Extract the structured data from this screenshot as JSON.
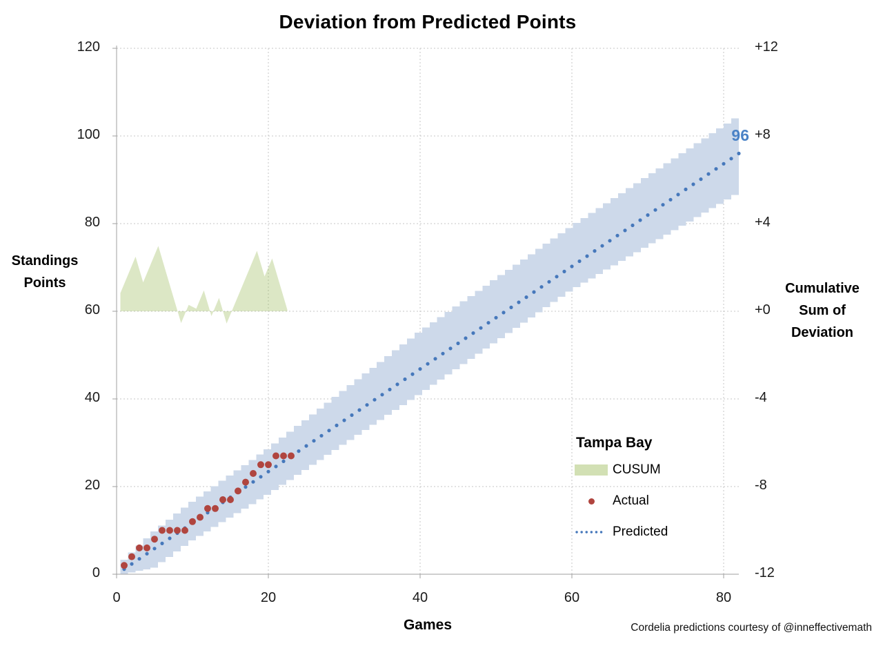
{
  "title": "Deviation from Predicted Points",
  "footnote": "Cordelia predictions courtesy of @inneffectivemath",
  "annotation": {
    "text": "96",
    "color": "#4a82c6"
  },
  "axes": {
    "x": {
      "label": "Games",
      "ticks": [
        0,
        20,
        40,
        60,
        80
      ],
      "range": [
        0,
        82
      ]
    },
    "y_left": {
      "label": "Standings Points",
      "ticks": [
        0,
        20,
        40,
        60,
        80,
        100,
        120
      ],
      "range": [
        0,
        120
      ]
    },
    "y_right": {
      "label": "Cumulative Sum of Deviation",
      "ticks": [
        "+12",
        "+8",
        "+4",
        "+0",
        "-4",
        "-8",
        "-12"
      ],
      "tick_values": [
        12,
        8,
        4,
        0,
        -4,
        -8,
        -12
      ],
      "range": [
        -12,
        12
      ]
    }
  },
  "legend": {
    "title": "Tampa Bay",
    "items": [
      {
        "label": "CUSUM",
        "type": "area",
        "color": "#9BBB59",
        "opacity": 0.35
      },
      {
        "label": "Actual",
        "type": "dot",
        "color": "#b0453f"
      },
      {
        "label": "Predicted",
        "type": "dotted-line",
        "color": "#4678bb"
      }
    ]
  },
  "colors": {
    "band_fill": "#cdd9ea",
    "cusum_fill": "#9BBB59",
    "cusum_opacity": 0.35,
    "actual": "#b0453f",
    "predicted": "#4678bb",
    "annotation_blue": "#4a82c6",
    "gridline": "#c4c4c4",
    "axis_line": "#9f9f9f"
  },
  "chart_data": {
    "type": "combo",
    "title": "Deviation from Predicted Points",
    "xlabel": "Games",
    "ylabel_left": "Standings Points",
    "ylabel_right": "Cumulative Sum of Deviation",
    "xlim": [
      0,
      83
    ],
    "ylim_left": [
      0,
      120
    ],
    "ylim_right": [
      -12,
      12
    ],
    "grid": true,
    "legend_position": "inside-lower-right",
    "series": [
      {
        "name": "Actual",
        "type": "scatter",
        "axis": "left",
        "x": [
          1,
          2,
          3,
          4,
          5,
          6,
          7,
          8,
          9,
          10,
          11,
          12,
          13,
          14,
          15,
          16,
          17,
          18,
          19,
          20,
          21,
          22,
          23
        ],
        "values": [
          2,
          4,
          6,
          6,
          8,
          10,
          10,
          10,
          10,
          12,
          13,
          15,
          15,
          17,
          17,
          19,
          21,
          23,
          25,
          25,
          27,
          27,
          27
        ]
      },
      {
        "name": "Predicted",
        "type": "dotted-line",
        "axis": "left",
        "games": 82,
        "points_per_game": 1.1707,
        "final_points": 96
      },
      {
        "name": "CUSUM",
        "type": "area",
        "axis": "right",
        "x": [
          1,
          2,
          3,
          4,
          5,
          6,
          7,
          8,
          9,
          10,
          11,
          12,
          13,
          14,
          15,
          16,
          17,
          18,
          19,
          20,
          21,
          22,
          23
        ],
        "values": [
          0.83,
          1.66,
          2.49,
          1.32,
          2.15,
          2.98,
          1.8,
          0.63,
          -0.54,
          0.29,
          0.12,
          0.95,
          -0.22,
          0.61,
          -0.56,
          0.27,
          1.1,
          1.93,
          2.76,
          1.59,
          2.41,
          1.24,
          0.07
        ]
      },
      {
        "name": "Prediction band",
        "type": "stepped-band",
        "axis": "left",
        "anchors": [
          [
            1,
            0.0,
            3.3
          ],
          [
            5,
            1.5,
            9.8
          ],
          [
            10,
            7.7,
            16.5
          ],
          [
            20,
            18.1,
            28.5
          ],
          [
            40,
            40.9,
            55.1
          ],
          [
            60,
            64.5,
            79.0
          ],
          [
            82,
            86.5,
            104.0
          ]
        ]
      }
    ],
    "annotations": [
      {
        "text": "96",
        "x": 82,
        "y_left": 100
      }
    ]
  }
}
